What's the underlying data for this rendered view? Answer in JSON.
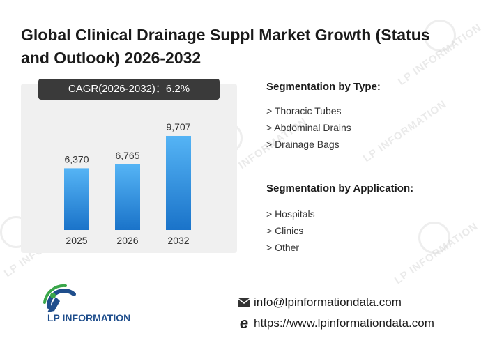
{
  "title": "Global Clinical Drainage Suppl Market Growth (Status and Outlook) 2026-2032",
  "cagr_label": "CAGR(2026-2032)：6.2%",
  "chart_data": {
    "type": "bar",
    "categories": [
      "2025",
      "2026",
      "2032"
    ],
    "values": [
      6370,
      6765,
      9707
    ],
    "value_labels": [
      "6,370",
      "6,765",
      "9,707"
    ],
    "title": "",
    "xlabel": "",
    "ylabel": "",
    "ylim": [
      0,
      11000
    ],
    "grid": false,
    "bar_color_top": "#55b4f5",
    "bar_color_bottom": "#1a73c9"
  },
  "segmentation_type": {
    "heading": "Segmentation by Type:",
    "items": [
      "> Thoracic Tubes",
      "> Abdominal Drains",
      "> Drainage Bags"
    ]
  },
  "segmentation_application": {
    "heading": "Segmentation by Application:",
    "items": [
      "> Hospitals",
      "> Clinics",
      "> Other"
    ]
  },
  "logo": {
    "text": "LP INFORMATION",
    "watermark_text": "LP INFORMATION"
  },
  "contact": {
    "email": "info@lpinformationdata.com",
    "website": "https://www.lpinformationdata.com"
  },
  "colors": {
    "accent_blue": "#1f4e8c",
    "accent_green": "#3aa64a",
    "cagr_bg": "#3a3a3a",
    "panel_bg": "#f0f0f0"
  }
}
